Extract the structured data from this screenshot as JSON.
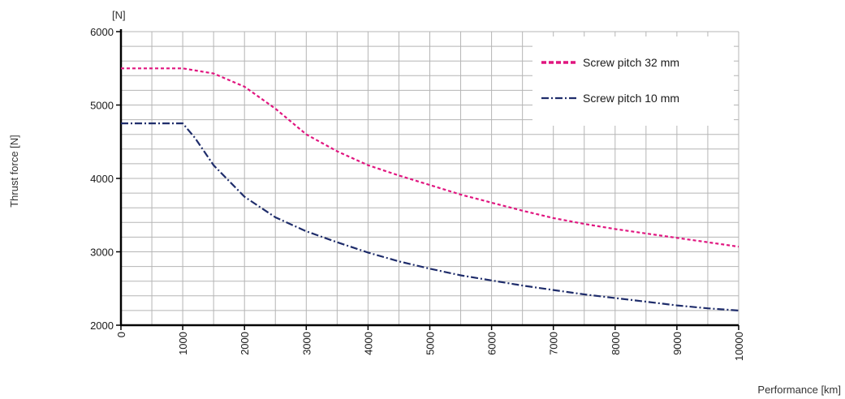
{
  "chart_data": {
    "type": "line",
    "xlabel": "Performance [km]",
    "ylabel": "Thrust force [N]",
    "yunit": "[N]",
    "xlim": [
      0,
      10000
    ],
    "ylim": [
      2000,
      6000
    ],
    "x_ticks": [
      0,
      1000,
      2000,
      3000,
      4000,
      5000,
      6000,
      7000,
      8000,
      9000,
      10000
    ],
    "y_ticks": [
      2000,
      3000,
      4000,
      5000,
      6000
    ],
    "x_tick_labels": [
      "0",
      "1000",
      "2000",
      "3000",
      "4000",
      "5000",
      "6000",
      "7000",
      "8000",
      "9000",
      "10000"
    ],
    "y_tick_labels": [
      "2000",
      "3000",
      "4000",
      "5000",
      "6000"
    ],
    "x_minor_step": 500,
    "y_minor_step": 200,
    "grid": true,
    "legend_position": "top-right",
    "series": [
      {
        "name": "Screw pitch 32 mm",
        "color": "#e0157f",
        "style": "dashed",
        "x": [
          0,
          500,
          1000,
          1500,
          2000,
          2500,
          3000,
          3500,
          4000,
          4500,
          5000,
          5500,
          6000,
          6500,
          7000,
          7500,
          8000,
          8500,
          9000,
          9500,
          10000
        ],
        "y": [
          5500,
          5500,
          5500,
          5430,
          5250,
          4950,
          4600,
          4370,
          4180,
          4040,
          3910,
          3780,
          3670,
          3560,
          3460,
          3380,
          3310,
          3250,
          3190,
          3130,
          3070
        ]
      },
      {
        "name": "Screw pitch 10 mm",
        "color": "#1f2d6b",
        "style": "dash-dot",
        "x": [
          0,
          500,
          1000,
          1200,
          1500,
          2000,
          2500,
          3000,
          3500,
          4000,
          4500,
          5000,
          5500,
          6000,
          6500,
          7000,
          7500,
          8000,
          8500,
          9000,
          9500,
          10000
        ],
        "y": [
          4750,
          4750,
          4750,
          4550,
          4180,
          3750,
          3470,
          3280,
          3130,
          2990,
          2870,
          2770,
          2680,
          2610,
          2540,
          2480,
          2420,
          2370,
          2320,
          2270,
          2230,
          2200
        ]
      }
    ]
  }
}
